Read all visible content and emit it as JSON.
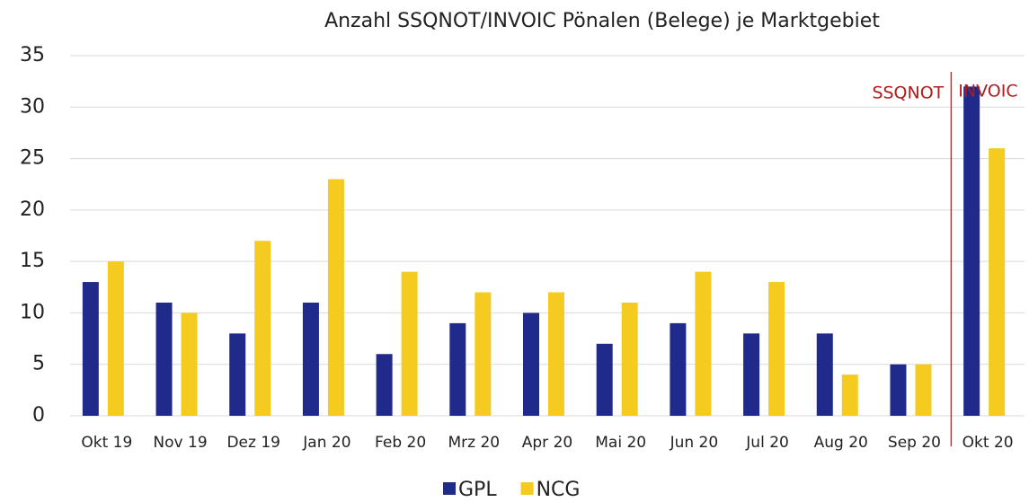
{
  "chart_data": {
    "type": "bar",
    "title": "Anzahl SSQNOT/INVOIC Pönalen (Belege) je Marktgebiet",
    "categories": [
      "Okt 19",
      "Nov 19",
      "Dez 19",
      "Jan 20",
      "Feb 20",
      "Mrz 20",
      "Apr 20",
      "Mai 20",
      "Jun 20",
      "Jul 20",
      "Aug 20",
      "Sep 20",
      "Okt 20"
    ],
    "series": [
      {
        "name": "GPL",
        "color": "#1f2a8a",
        "values": [
          13,
          11,
          8,
          11,
          6,
          9,
          10,
          7,
          9,
          8,
          8,
          5,
          32
        ]
      },
      {
        "name": "NCG",
        "color": "#f5cb20",
        "values": [
          15,
          10,
          17,
          23,
          14,
          12,
          12,
          11,
          14,
          13,
          4,
          5,
          26
        ]
      }
    ],
    "annotations": [
      "SSQNOT",
      "INVOIC"
    ],
    "ylim": [
      0,
      35
    ],
    "yticks": [
      0,
      5,
      10,
      15,
      20,
      25,
      30,
      35
    ],
    "grid": true,
    "legend": "bottom"
  }
}
